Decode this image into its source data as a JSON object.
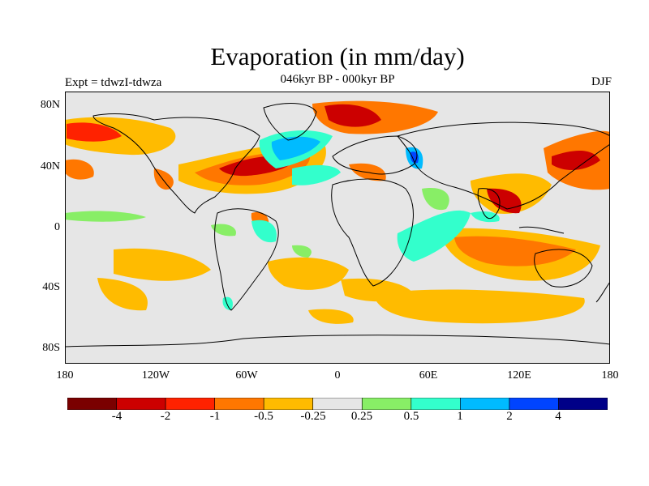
{
  "title": "Evaporation (in mm/day)",
  "subtitle": "046kyr BP - 000kyr BP",
  "left_label": "Expt = tdwzI-tdwza",
  "right_label": "DJF",
  "lat_ticks": [
    "80N",
    "40N",
    "0",
    "40S",
    "80S"
  ],
  "lon_ticks": [
    "180",
    "120W",
    "60W",
    "0",
    "60E",
    "120E",
    "180"
  ],
  "colorbar": {
    "colors": [
      "#7a0000",
      "#cc0000",
      "#ff2200",
      "#ff7700",
      "#ffbb00",
      "#e6e6e6",
      "#88ee66",
      "#33ffcc",
      "#00bbff",
      "#0044ff",
      "#000088"
    ],
    "labels": [
      "-4",
      "-2",
      "-1",
      "-0.5",
      "-0.25",
      "0.25",
      "0.5",
      "1",
      "2",
      "4"
    ]
  },
  "colors": {
    "land_outline": "#000000",
    "ocean_neutral": "#e6e6e6"
  }
}
